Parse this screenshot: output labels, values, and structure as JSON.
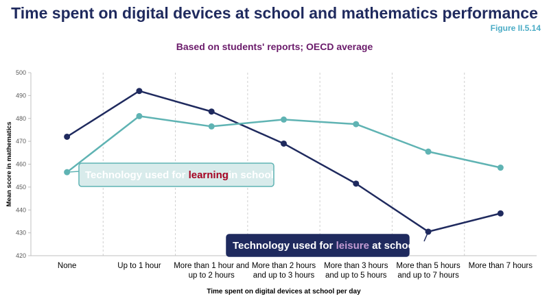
{
  "header": {
    "title": "Time spent on digital devices at school and mathematics performance",
    "figure_label": "Figure II.5.14",
    "subtitle": "Based on students' reports; OECD average"
  },
  "colors": {
    "leisure": "#1f2a5e",
    "learning": "#5fb3b3",
    "learning_callout_bg": "#d8ebeb",
    "learning_highlight": "#a50021",
    "leisure_highlight": "#c39bd3",
    "grid": "#cfcfcf"
  },
  "chart_data": {
    "type": "line",
    "title": "Time spent on digital devices at school and mathematics performance",
    "subtitle": "Based on students' reports; OECD average",
    "xlabel": "Time spent on digital devices at school per day",
    "ylabel": "Mean score in mathematics",
    "ylim": [
      420,
      500
    ],
    "yticks": [
      420,
      430,
      440,
      450,
      460,
      470,
      480,
      490,
      500
    ],
    "grid": "vertical dashed",
    "categories": [
      [
        "None"
      ],
      [
        "Up to 1 hour"
      ],
      [
        "More than 1 hour and",
        "up to 2 hours"
      ],
      [
        "More than 2 hours",
        "and up to 3 hours"
      ],
      [
        "More than 3 hours",
        "and up to 5 hours"
      ],
      [
        "More than 5 hours",
        "and up to 7 hours"
      ],
      [
        "More than 7 hours"
      ]
    ],
    "series": [
      {
        "name": "Technology used for leisure at school",
        "color": "#1f2a5e",
        "values": [
          472,
          492,
          483,
          469,
          451.5,
          430.5,
          438.5
        ]
      },
      {
        "name": "Technology used for learning in school",
        "color": "#5fb3b3",
        "values": [
          456.5,
          481,
          476.5,
          479.5,
          477.5,
          465.5,
          458.5
        ]
      }
    ],
    "annotations": [
      {
        "series": 1,
        "parts": [
          "Technology used for ",
          "learning",
          "in school"
        ],
        "emphasis": "learning"
      },
      {
        "series": 0,
        "parts": [
          "Technology used for ",
          "leisure",
          " at school"
        ],
        "emphasis": "leisure"
      }
    ]
  }
}
